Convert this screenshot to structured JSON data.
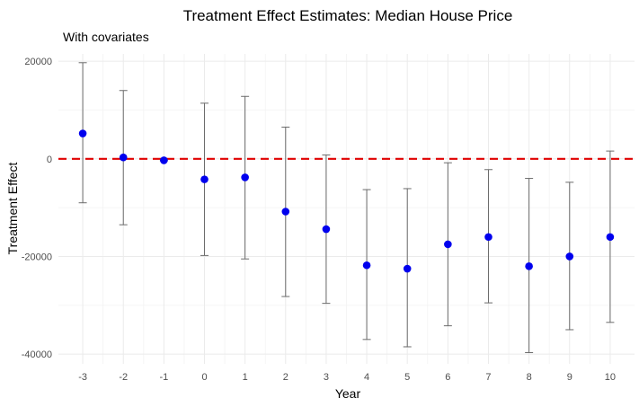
{
  "chart_data": {
    "type": "scatter",
    "title": "Treatment Effect Estimates: Median House Price",
    "subtitle": "With covariates",
    "xlabel": "Year",
    "ylabel": "Treatment Effect",
    "x": [
      -3,
      -2,
      -1,
      0,
      1,
      2,
      3,
      4,
      5,
      6,
      7,
      8,
      9,
      10
    ],
    "estimate": [
      5200,
      300,
      -300,
      -4200,
      -3800,
      -10800,
      -14400,
      -21800,
      -22500,
      -17500,
      -16000,
      -22000,
      -20000,
      -16000
    ],
    "ci_lower": [
      -9000,
      -13500,
      -400,
      -19800,
      -20500,
      -28200,
      -29600,
      -37000,
      -38500,
      -34200,
      -29500,
      -39700,
      -35000,
      -33500
    ],
    "ci_upper": [
      19700,
      14000,
      -200,
      11400,
      12800,
      6500,
      800,
      -6300,
      -6100,
      -800,
      -2200,
      -4000,
      -4800,
      1600
    ],
    "x_ticks": [
      "-3",
      "-2",
      "-1",
      "0",
      "1",
      "2",
      "3",
      "4",
      "5",
      "6",
      "7",
      "8",
      "9",
      "10"
    ],
    "y_ticks": [
      20000,
      0,
      -20000,
      -40000
    ],
    "y_tick_labels": [
      "20000",
      "0",
      "-20000",
      "-40000"
    ],
    "xlim": [
      -3.6,
      10.6
    ],
    "ylim": [
      -42000,
      21500
    ],
    "reference_line": 0,
    "grid": true,
    "colors": {
      "point": "#0000ee",
      "errorbar": "#6b6b6b",
      "reference_line": "#e00000"
    }
  }
}
